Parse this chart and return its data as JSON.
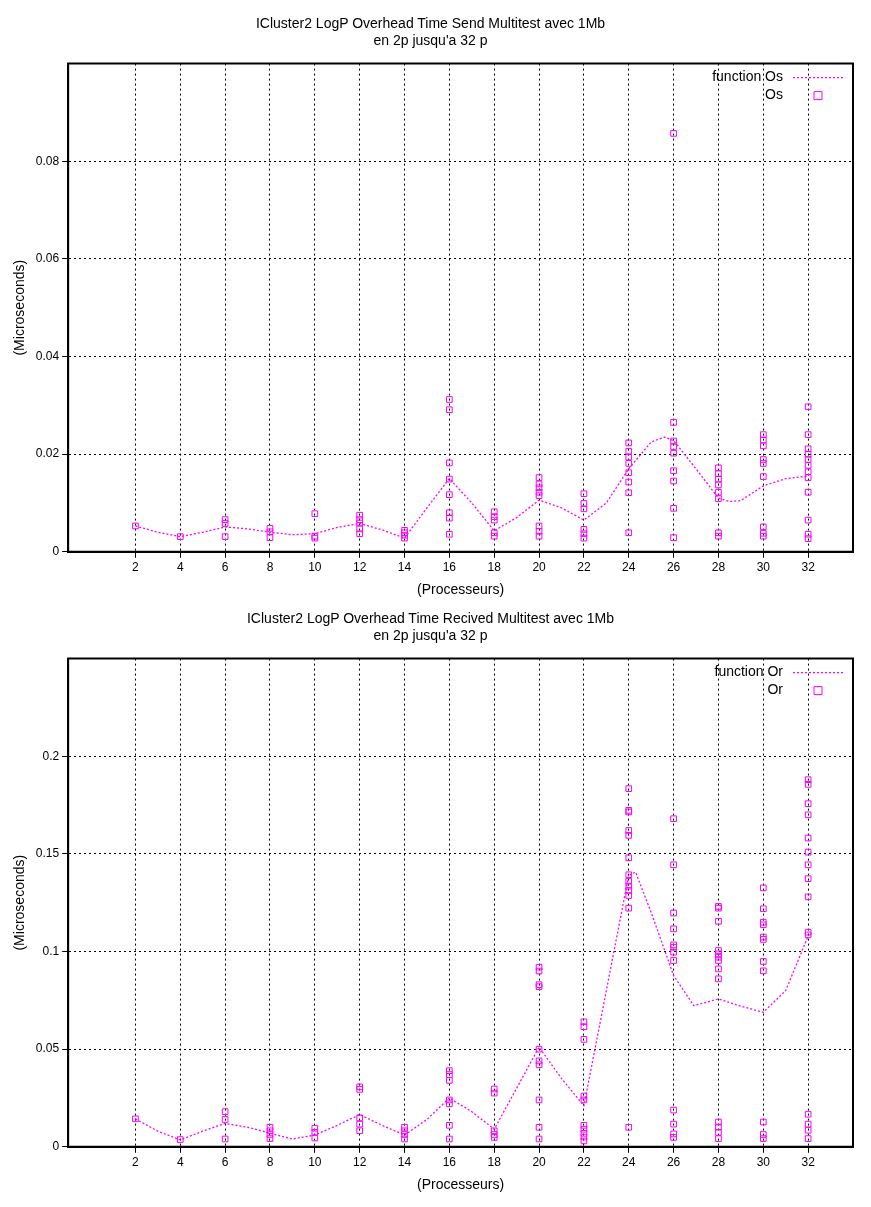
{
  "chart_data": [
    {
      "type": "scatter",
      "title": "ICluster2 LogP Overhead Time Send Multitest avec 1Mb",
      "subtitle": "en 2p jusqu'a 32 p",
      "xlabel": "(Processeurs)",
      "ylabel": "(Microseconds)",
      "xlim": [
        -1,
        34
      ],
      "xticks": [
        2,
        4,
        6,
        8,
        10,
        12,
        14,
        16,
        18,
        20,
        22,
        24,
        26,
        28,
        30,
        32
      ],
      "ylim": [
        0,
        0.1
      ],
      "yticks": [
        0,
        0.02,
        0.04,
        0.06,
        0.08
      ],
      "grid": true,
      "legend": "top right",
      "series": [
        {
          "name": "function Os",
          "type": "line",
          "color": "#ff00ff",
          "line_style": "dotted",
          "marker": "none",
          "x": [
            2,
            3,
            4,
            5,
            6,
            7,
            8,
            9,
            10,
            11,
            12,
            13,
            14,
            15,
            16,
            17,
            18,
            19,
            20,
            21,
            22,
            23,
            24,
            25,
            25.6,
            26,
            27,
            28,
            28.5,
            29,
            30,
            31,
            32
          ],
          "values": [
            0.0053,
            0.004,
            0.0031,
            0.004,
            0.0051,
            0.0047,
            0.004,
            0.0035,
            0.0037,
            0.005,
            0.0058,
            0.0045,
            0.0028,
            0.009,
            0.015,
            0.01,
            0.0043,
            0.007,
            0.0106,
            0.009,
            0.0065,
            0.01,
            0.017,
            0.0225,
            0.0235,
            0.0228,
            0.017,
            0.011,
            0.0103,
            0.0105,
            0.0135,
            0.015,
            0.0155
          ]
        },
        {
          "name": "Os",
          "type": "scatter",
          "color": "#ff00ff",
          "marker": "square",
          "x": [
            2,
            4,
            6,
            6,
            6,
            8,
            8,
            8,
            10,
            10,
            10,
            12,
            12,
            12,
            12,
            12,
            14,
            14,
            14,
            14,
            16,
            16,
            16,
            16,
            16,
            16,
            16,
            16,
            18,
            18,
            18,
            18,
            18,
            20,
            20,
            20,
            20,
            20,
            20,
            20,
            20,
            22,
            22,
            22,
            22,
            22,
            22,
            24,
            24,
            24,
            24,
            24,
            24,
            24,
            24,
            26,
            26,
            26,
            26,
            26,
            26,
            26,
            26,
            26,
            28,
            28,
            28,
            28,
            28,
            28,
            28,
            28,
            30,
            30,
            30,
            30,
            30,
            30,
            30,
            30,
            30,
            32,
            32,
            32,
            32,
            32,
            32,
            32,
            32,
            32,
            32,
            32,
            32
          ],
          "values": [
            0.0053,
            0.0031,
            0.0066,
            0.0058,
            0.0031,
            0.0048,
            0.0041,
            0.0029,
            0.0078,
            0.0032,
            0.0028,
            0.0075,
            0.0066,
            0.0059,
            0.0047,
            0.0037,
            0.0044,
            0.0039,
            0.0034,
            0.0028,
            0.0312,
            0.0291,
            0.0182,
            0.0149,
            0.0117,
            0.008,
            0.0069,
            0.0036,
            0.0082,
            0.0072,
            0.0065,
            0.0039,
            0.0032,
            0.0152,
            0.0139,
            0.0131,
            0.0122,
            0.0115,
            0.0053,
            0.0042,
            0.0032,
            0.0119,
            0.0099,
            0.0088,
            0.0046,
            0.0037,
            0.0028,
            0.0223,
            0.0206,
            0.0194,
            0.0181,
            0.0162,
            0.0143,
            0.0121,
            0.0039,
            0.0857,
            0.0265,
            0.0227,
            0.0215,
            0.0202,
            0.0166,
            0.0145,
            0.0089,
            0.0029,
            0.0172,
            0.016,
            0.0149,
            0.0137,
            0.0122,
            0.0109,
            0.0039,
            0.0032,
            0.024,
            0.0229,
            0.0217,
            0.0189,
            0.0181,
            0.0154,
            0.0051,
            0.0038,
            0.0032,
            0.0297,
            0.024,
            0.0211,
            0.02,
            0.0189,
            0.0177,
            0.0164,
            0.0152,
            0.0122,
            0.0065,
            0.0036,
            0.0027
          ]
        }
      ]
    },
    {
      "type": "scatter",
      "title": "ICluster2 LogP Overhead Time Recived Multitest avec 1Mb",
      "subtitle": "en 2p jusqu'a 32 p",
      "xlabel": "(Processeurs)",
      "ylabel": "(Microseconds)",
      "xlim": [
        -1,
        34
      ],
      "xticks": [
        2,
        4,
        6,
        8,
        10,
        12,
        14,
        16,
        18,
        20,
        22,
        24,
        26,
        28,
        30,
        32
      ],
      "ylim": [
        0,
        0.25
      ],
      "yticks": [
        0,
        0.05,
        0.1,
        0.15,
        0.2
      ],
      "grid": true,
      "legend": "top right",
      "series": [
        {
          "name": "function Or",
          "type": "line",
          "color": "#ff00ff",
          "line_style": "dotted",
          "marker": "none",
          "x": [
            2,
            3,
            4,
            5,
            6,
            7,
            8,
            9,
            10,
            11,
            12,
            13,
            14,
            15,
            16,
            17,
            18,
            19,
            20,
            21,
            22,
            23,
            24,
            24.3,
            25,
            26,
            26.9,
            28,
            29,
            30,
            31,
            32
          ],
          "values": [
            0.0143,
            0.008,
            0.0035,
            0.008,
            0.012,
            0.01,
            0.007,
            0.004,
            0.006,
            0.011,
            0.0165,
            0.011,
            0.006,
            0.014,
            0.025,
            0.018,
            0.009,
            0.03,
            0.051,
            0.035,
            0.021,
            0.08,
            0.139,
            0.1407,
            0.12,
            0.0877,
            0.0723,
            0.0757,
            0.072,
            0.0689,
            0.08,
            0.108
          ]
        },
        {
          "name": "Or",
          "type": "scatter",
          "color": "#ff00ff",
          "marker": "square",
          "x": [
            2,
            4,
            6,
            6,
            6,
            8,
            8,
            8,
            8,
            10,
            10,
            10,
            12,
            12,
            12,
            12,
            12,
            14,
            14,
            14,
            14,
            16,
            16,
            16,
            16,
            16,
            16,
            16,
            18,
            18,
            18,
            18,
            18,
            20,
            20,
            20,
            20,
            20,
            20,
            20,
            20,
            20,
            20,
            22,
            22,
            22,
            22,
            22,
            22,
            22,
            22,
            22,
            22,
            24,
            24,
            24,
            24,
            24,
            24,
            24,
            24,
            24,
            24,
            24,
            24,
            24,
            26,
            26,
            26,
            26,
            26,
            26,
            26,
            26,
            26,
            26,
            26,
            26,
            28,
            28,
            28,
            28,
            28,
            28,
            28,
            28,
            28,
            28,
            28,
            28,
            28,
            30,
            30,
            30,
            30,
            30,
            30,
            30,
            30,
            30,
            30,
            30,
            32,
            32,
            32,
            32,
            32,
            32,
            32,
            32,
            32,
            32,
            32,
            32,
            32,
            32,
            32
          ],
          "values": [
            0.0143,
            0.0037,
            0.018,
            0.014,
            0.004,
            0.01,
            0.0082,
            0.0063,
            0.0042,
            0.0095,
            0.0074,
            0.0045,
            0.0307,
            0.0294,
            0.0148,
            0.0116,
            0.0082,
            0.01,
            0.0082,
            0.0063,
            0.004,
            0.039,
            0.037,
            0.034,
            0.024,
            0.022,
            0.011,
            0.004,
            0.0296,
            0.0275,
            0.0082,
            0.0063,
            0.0048,
            0.092,
            0.09,
            0.083,
            0.082,
            0.05,
            0.044,
            0.042,
            0.024,
            0.01,
            0.004,
            0.064,
            0.0615,
            0.055,
            0.026,
            0.024,
            0.011,
            0.009,
            0.0069,
            0.005,
            0.003,
            0.1834,
            0.1723,
            0.1715,
            0.162,
            0.1595,
            0.148,
            0.1393,
            0.136,
            0.1335,
            0.1313,
            0.1287,
            0.1222,
            0.01,
            0.168,
            0.1444,
            0.1197,
            0.1116,
            0.1034,
            0.1022,
            0.0997,
            0.0954,
            0.0188,
            0.0116,
            0.0066,
            0.0048,
            0.1231,
            0.1222,
            0.1155,
            0.1005,
            0.0988,
            0.0971,
            0.0954,
            0.0911,
            0.086,
            0.0127,
            0.0101,
            0.0074,
            0.0042,
            0.1326,
            0.1219,
            0.115,
            0.1137,
            0.1074,
            0.1062,
            0.0949,
            0.0901,
            0.0127,
            0.0063,
            0.0042,
            0.188,
            0.1856,
            0.1757,
            0.17,
            0.1581,
            0.1509,
            0.1444,
            0.1373,
            0.128,
            0.1099,
            0.1085,
            0.0167,
            0.0116,
            0.0085,
            0.0042
          ]
        }
      ]
    }
  ]
}
